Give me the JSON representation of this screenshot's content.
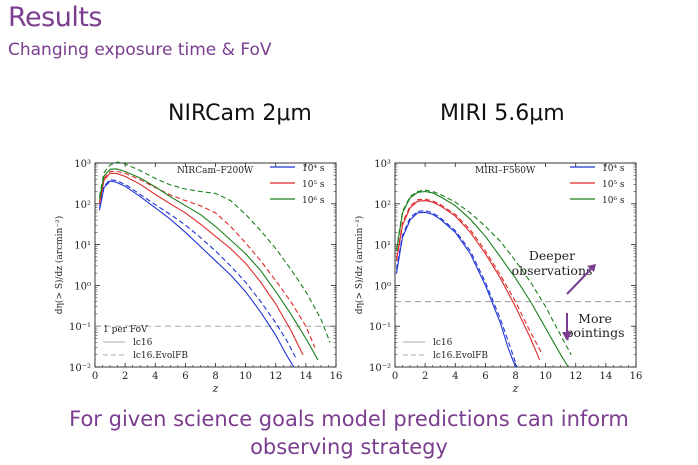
{
  "slide": {
    "title": "Results",
    "subtitle": "Changing exposure time & FoV",
    "footer_line1": "For given science goals model predictions can inform",
    "footer_line2": "observing strategy"
  },
  "colors": {
    "accent": "#7a3d8f",
    "blue": "#1f35d6",
    "red": "#e02828",
    "green": "#1a7f1a",
    "gray": "#aaaaaa"
  },
  "chart_data": [
    {
      "type": "line",
      "panel_title": "NIRCam 2μm",
      "inset_label": "NIRCam–F200W",
      "xlabel": "z",
      "ylabel": "dη(> S)/dz  (arcmin⁻²)",
      "xlim": [
        0,
        16
      ],
      "ylim_log10": [
        -2,
        3
      ],
      "x_ticks": [
        "0",
        "2",
        "4",
        "6",
        "8",
        "10",
        "12",
        "14",
        "16"
      ],
      "y_ticks": [
        "10⁻²",
        "10⁻¹",
        "10⁰",
        "10¹",
        "10²",
        "10³"
      ],
      "legend_top": [
        "10⁴ s",
        "10⁵ s",
        "10⁶ s"
      ],
      "legend_bottom": [
        "1 per FoV",
        "lc16",
        "lc16.EvolFB"
      ],
      "hline": {
        "label": "1 per FoV",
        "y": 0.1
      },
      "series": [
        {
          "name": "10⁴ s",
          "color": "blue",
          "style": "solid",
          "x": [
            0.3,
            0.6,
            1,
            1.4,
            2,
            3,
            4,
            5,
            6,
            7,
            8,
            9,
            10,
            11,
            12,
            12.7,
            13.2
          ],
          "y": [
            70,
            250,
            360,
            340,
            270,
            150,
            80,
            42,
            20,
            9,
            4,
            1.8,
            0.7,
            0.22,
            0.06,
            0.02,
            0.01
          ]
        },
        {
          "name": "10⁴ s (lc16.EvolFB)",
          "color": "blue",
          "style": "dashed",
          "x": [
            0.3,
            0.6,
            1,
            1.4,
            2,
            3,
            4,
            5,
            6,
            7,
            8,
            9,
            10,
            11,
            12,
            12.8,
            13.4
          ],
          "y": [
            80,
            270,
            390,
            370,
            300,
            170,
            95,
            55,
            30,
            15,
            7,
            3,
            1.2,
            0.4,
            0.12,
            0.04,
            0.015
          ]
        },
        {
          "name": "10⁵ s",
          "color": "red",
          "style": "solid",
          "x": [
            0.3,
            0.6,
            1,
            1.4,
            2,
            3,
            4,
            5,
            6,
            7,
            8,
            9,
            10,
            11,
            12,
            13,
            13.8
          ],
          "y": [
            100,
            380,
            560,
            560,
            470,
            300,
            170,
            100,
            60,
            32,
            16,
            8,
            3.5,
            1.2,
            0.35,
            0.08,
            0.02
          ]
        },
        {
          "name": "10⁵ s (lc16.EvolFB)",
          "color": "red",
          "style": "dashed",
          "x": [
            0.3,
            0.6,
            1,
            1.4,
            2,
            3,
            4,
            5,
            6,
            7,
            8,
            9,
            10,
            11,
            12,
            13,
            14,
            14.6
          ],
          "y": [
            110,
            420,
            620,
            630,
            560,
            390,
            250,
            165,
            120,
            90,
            60,
            28,
            11,
            4,
            1.3,
            0.4,
            0.1,
            0.03
          ]
        },
        {
          "name": "10⁶ s",
          "color": "green",
          "style": "solid",
          "x": [
            0.3,
            0.6,
            1,
            1.4,
            2,
            3,
            4,
            5,
            6,
            7,
            8,
            9,
            10,
            11,
            12,
            13,
            14,
            14.8
          ],
          "y": [
            130,
            480,
            700,
            720,
            620,
            430,
            260,
            150,
            90,
            55,
            28,
            13,
            6,
            2.3,
            0.7,
            0.2,
            0.05,
            0.015
          ]
        },
        {
          "name": "10⁶ s (lc16.EvolFB)",
          "color": "green",
          "style": "dashed",
          "x": [
            0.3,
            0.6,
            1,
            1.5,
            2,
            3,
            4,
            5,
            6,
            7,
            8,
            9,
            10,
            11,
            12,
            13,
            14,
            15,
            15.6
          ],
          "y": [
            150,
            580,
            900,
            1050,
            950,
            650,
            420,
            290,
            230,
            200,
            180,
            120,
            55,
            22,
            8,
            2.5,
            0.7,
            0.15,
            0.04
          ]
        }
      ]
    },
    {
      "type": "line",
      "panel_title": "MIRI 5.6μm",
      "inset_label": "MIRI–F560W",
      "xlabel": "z",
      "ylabel": "dη(> S)/dz  (arcmin⁻²)",
      "xlim": [
        0,
        16
      ],
      "ylim_log10": [
        -2,
        3
      ],
      "x_ticks": [
        "0",
        "2",
        "4",
        "6",
        "8",
        "10",
        "12",
        "14",
        "16"
      ],
      "y_ticks": [
        "10⁻²",
        "10⁻¹",
        "10⁰",
        "10¹",
        "10²",
        "10³"
      ],
      "legend_top": [
        "10⁴ s",
        "10⁵ s",
        "10⁶ s"
      ],
      "legend_bottom": [
        "lc16",
        "lc16.EvolFB"
      ],
      "hline": {
        "label": "",
        "y": 0.4
      },
      "annotations": {
        "up_label": "Deeper\nobservations",
        "down_label": "More\npointings"
      },
      "series": [
        {
          "name": "10⁴ s",
          "color": "blue",
          "style": "solid",
          "x": [
            0.1,
            0.5,
            1,
            1.5,
            2,
            2.5,
            3,
            4,
            5,
            6,
            7,
            7.5,
            8
          ],
          "y": [
            2,
            15,
            40,
            60,
            62,
            55,
            42,
            20,
            6,
            1,
            0.12,
            0.03,
            0.01
          ]
        },
        {
          "name": "10⁴ s (lc16.EvolFB)",
          "color": "blue",
          "style": "dashed",
          "x": [
            0.1,
            0.5,
            1,
            1.5,
            2,
            2.5,
            3,
            4,
            5,
            6,
            7,
            7.6,
            8.1
          ],
          "y": [
            2.5,
            17,
            45,
            65,
            68,
            60,
            46,
            22,
            7,
            1.2,
            0.15,
            0.035,
            0.01
          ]
        },
        {
          "name": "10⁵ s",
          "color": "red",
          "style": "solid",
          "x": [
            0.1,
            0.5,
            1,
            1.5,
            2,
            2.5,
            3,
            4,
            5,
            6,
            7,
            8,
            9,
            9.6
          ],
          "y": [
            4,
            30,
            80,
            115,
            120,
            110,
            90,
            50,
            20,
            6,
            1.5,
            0.3,
            0.05,
            0.015
          ]
        },
        {
          "name": "10⁵ s (lc16.EvolFB)",
          "color": "red",
          "style": "dashed",
          "x": [
            0.1,
            0.5,
            1,
            1.5,
            2,
            2.5,
            3,
            4,
            5,
            6,
            7,
            8,
            9,
            9.8
          ],
          "y": [
            4.5,
            34,
            88,
            125,
            130,
            118,
            96,
            55,
            23,
            7,
            1.8,
            0.4,
            0.07,
            0.02
          ]
        },
        {
          "name": "10⁶ s",
          "color": "green",
          "style": "solid",
          "x": [
            0.1,
            0.5,
            1,
            1.5,
            2,
            2.5,
            3,
            4,
            5,
            6,
            7,
            8,
            9,
            10,
            11,
            11.5
          ],
          "y": [
            7,
            60,
            140,
            190,
            200,
            185,
            150,
            90,
            42,
            16,
            5,
            1.5,
            0.4,
            0.09,
            0.02,
            0.01
          ]
        },
        {
          "name": "10⁶ s (lc16.EvolFB)",
          "color": "green",
          "style": "dashed",
          "x": [
            0.1,
            0.5,
            1,
            1.5,
            2,
            2.5,
            3,
            4,
            5,
            6,
            7,
            8,
            9,
            10,
            11,
            11.7
          ],
          "y": [
            7.5,
            65,
            150,
            200,
            215,
            200,
            170,
            110,
            60,
            28,
            12,
            4,
            1.2,
            0.3,
            0.06,
            0.02
          ]
        }
      ]
    }
  ]
}
